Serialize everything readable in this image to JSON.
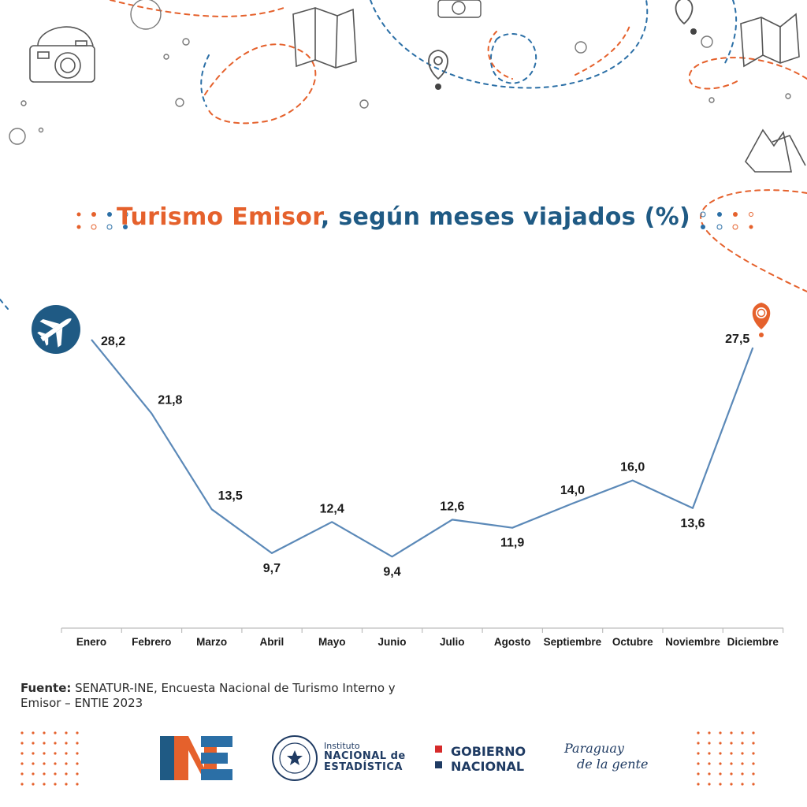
{
  "title": {
    "highlight": "Turismo Emisor",
    "rest": ", según meses viajados (%)"
  },
  "chart_data": {
    "type": "line",
    "categories": [
      "Enero",
      "Febrero",
      "Marzo",
      "Abril",
      "Mayo",
      "Junio",
      "Julio",
      "Agosto",
      "Septiembre",
      "Octubre",
      "Noviembre",
      "Diciembre"
    ],
    "values": [
      28.2,
      21.8,
      13.5,
      9.7,
      12.4,
      9.4,
      12.6,
      11.9,
      14.0,
      16.0,
      13.6,
      27.5
    ],
    "value_labels": [
      "28,2",
      "21,8",
      "13,5",
      "9,7",
      "12,4",
      "9,4",
      "12,6",
      "11,9",
      "14,0",
      "16,0",
      "13,6",
      "27,5"
    ],
    "grid": false,
    "line_color": "#5b89b8"
  },
  "source": {
    "label": "Fuente:",
    "text": " SENATUR-INE, Encuesta Nacional de Turismo Interno y Emisor – ENTIE 2023"
  },
  "logos": {
    "ine_small": "Instituto",
    "ine_line1": "NACIONAL de",
    "ine_line2": "ESTADÍSTICA",
    "gob_line1": "GOBIERNO",
    "gob_line2": "NACIONAL",
    "pdlg_line1": "Paraguay",
    "pdlg_line2": "de la gente"
  },
  "colors": {
    "orange": "#e5612c",
    "blue": "#1f5a84",
    "navy": "#1f3b63"
  }
}
